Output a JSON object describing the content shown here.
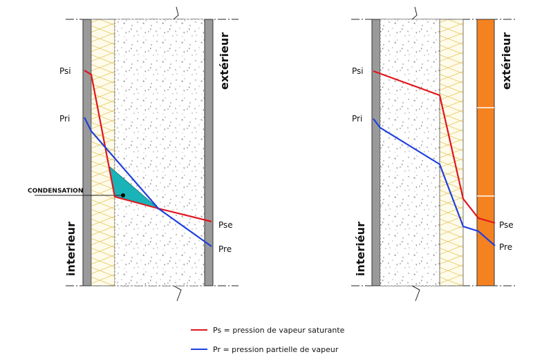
{
  "left_diagram": {
    "labels": {
      "psi": "Psi",
      "pri": "Pri",
      "pse": "Pse",
      "pre": "Pre",
      "condensation": "CONDENSATION",
      "interior": "interieur",
      "exterior": "extérieur"
    }
  },
  "right_diagram": {
    "labels": {
      "psi": "Psi",
      "pri": "Pri",
      "pse": "Pse",
      "pre": "Pre",
      "interior": "interiéur",
      "exterior": "extérieur"
    }
  },
  "legend": {
    "items": [
      {
        "color": "#e0151b",
        "label": "Ps = pression de vapeur saturante"
      },
      {
        "color": "#1e3fe0",
        "label": "Pr = pression partielle de vapeur"
      }
    ]
  },
  "colors": {
    "saturated": "#e0151b",
    "partial": "#1e3fe0",
    "condensation_zone": "#19b3b8",
    "cladding": "#f58220"
  }
}
